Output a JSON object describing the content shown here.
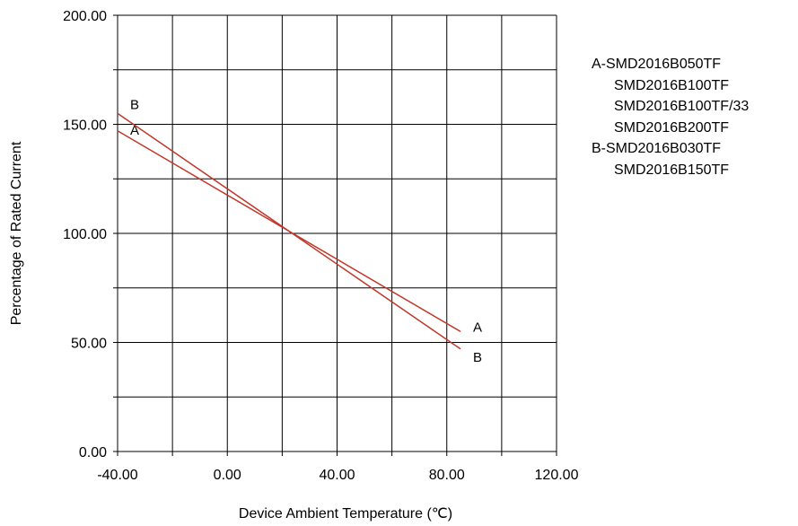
{
  "chart_data": {
    "type": "line",
    "title": "",
    "xlabel": "Device Ambient Temperature (℃)",
    "ylabel": "Percentage of Rated Current",
    "xlim": [
      -40,
      120
    ],
    "ylim": [
      0,
      200
    ],
    "x_ticks": [
      -40,
      0,
      40,
      80,
      120
    ],
    "x_tick_labels": [
      "-40.00",
      "0.00",
      "40.00",
      "80.00",
      "120.00"
    ],
    "x_minor_step": 20,
    "y_ticks": [
      0,
      50,
      100,
      150,
      200
    ],
    "y_tick_labels": [
      "0.00",
      "50.00",
      "100.00",
      "150.00",
      "200.00"
    ],
    "y_minor_step": 25,
    "grid": true,
    "line_color": "#c0392b",
    "series": [
      {
        "name": "A",
        "x": [
          -40,
          85
        ],
        "y": [
          147,
          55
        ],
        "start_label": "A",
        "end_label": "A"
      },
      {
        "name": "B",
        "x": [
          -40,
          85
        ],
        "y": [
          155,
          47
        ],
        "start_label": "B",
        "end_label": "B"
      }
    ],
    "legend": {
      "position": "right",
      "groups": [
        {
          "label": "A",
          "prefix": "A-",
          "items": [
            "SMD2016B050TF",
            "SMD2016B100TF",
            "SMD2016B100TF/33",
            "SMD2016B200TF"
          ]
        },
        {
          "label": "B",
          "prefix": "B-",
          "items": [
            "SMD2016B030TF",
            "SMD2016B150TF"
          ]
        }
      ]
    }
  }
}
